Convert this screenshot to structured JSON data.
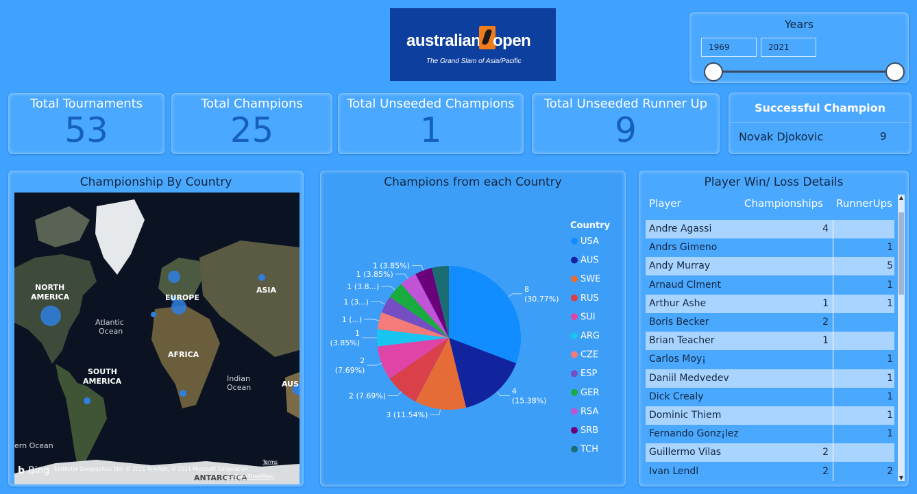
{
  "logo": {
    "word_left": "australian",
    "word_right": "open",
    "tagline": "The Grand Slam of Asia/Pacific"
  },
  "years": {
    "title": "Years",
    "start": "1969",
    "end": "2021"
  },
  "kpis": [
    {
      "label": "Total Tournaments",
      "value": "53"
    },
    {
      "label": "Total Champions",
      "value": "25"
    },
    {
      "label": "Total Unseeded Champions",
      "value": "1"
    },
    {
      "label": "Total Unseeded Runner Up",
      "value": "9"
    }
  ],
  "successful": {
    "title": "Successful Champion",
    "name": "Novak Djokovic",
    "count": "9"
  },
  "map": {
    "title": "Championship By Country",
    "labels": [
      "NORTH AMERICA",
      "EUROPE",
      "ASIA",
      "Atlantic Ocean",
      "AFRICA",
      "SOUTH AMERICA",
      "Indian Ocean",
      "AUS",
      "ern Ocean",
      "ANTARCTICA"
    ],
    "bing": "Bing",
    "attribution": "Earthstar Geographics SIO, © 2021 TomTom, © 2021 Microsoft Corporation",
    "terms": "Terms",
    "osm": "© OpenStreetMap"
  },
  "chart_data": {
    "type": "pie",
    "title": "Champions from each Country",
    "legend_title": "Country",
    "legend_position": "right",
    "categories": [
      "USA",
      "AUS",
      "SWE",
      "RUS",
      "SUI",
      "ARG",
      "CZE",
      "ESP",
      "GER",
      "RSA",
      "SRB",
      "TCH"
    ],
    "values": [
      8,
      4,
      3,
      2,
      2,
      1,
      1,
      1,
      1,
      1,
      1,
      1
    ],
    "colors": [
      "#118dff",
      "#12239e",
      "#e66c37",
      "#d9404a",
      "#e044a7",
      "#18c5f0",
      "#f57a7a",
      "#744ec2",
      "#1aab40",
      "#c153d6",
      "#6b007b",
      "#1b6c73"
    ],
    "data_labels": [
      "8\n(30.77%)",
      "4\n(15.38%)",
      "3 (11.54%)",
      "2 (7.69%)",
      "2\n(7.69%)",
      "1\n(3.85%)",
      "1 (...)",
      "1 (3...)",
      "1 (3.8...)",
      "1 (3.85%)",
      "1 (3.85%)",
      ""
    ]
  },
  "table": {
    "title": "Player Win/ Loss Details",
    "columns": [
      "Player",
      "Championships",
      "RunnerUps"
    ],
    "rows": [
      {
        "player": "Andre Agassi",
        "ch": "4",
        "ru": ""
      },
      {
        "player": "Andrs Gimeno",
        "ch": "",
        "ru": "1"
      },
      {
        "player": "Andy Murray",
        "ch": "",
        "ru": "5"
      },
      {
        "player": "Arnaud Clment",
        "ch": "",
        "ru": "1"
      },
      {
        "player": "Arthur Ashe",
        "ch": "1",
        "ru": "1"
      },
      {
        "player": "Boris Becker",
        "ch": "2",
        "ru": ""
      },
      {
        "player": "Brian Teacher",
        "ch": "1",
        "ru": ""
      },
      {
        "player": "Carlos Moy¡",
        "ch": "",
        "ru": "1"
      },
      {
        "player": "Daniil Medvedev",
        "ch": "",
        "ru": "1"
      },
      {
        "player": "Dick Crealy",
        "ch": "",
        "ru": "1"
      },
      {
        "player": "Dominic Thiem",
        "ch": "",
        "ru": "1"
      },
      {
        "player": "Fernando Gonz¡lez",
        "ch": "",
        "ru": "1"
      },
      {
        "player": "Guillermo Vilas",
        "ch": "2",
        "ru": ""
      },
      {
        "player": "Ivan Lendl",
        "ch": "2",
        "ru": "2"
      }
    ]
  }
}
